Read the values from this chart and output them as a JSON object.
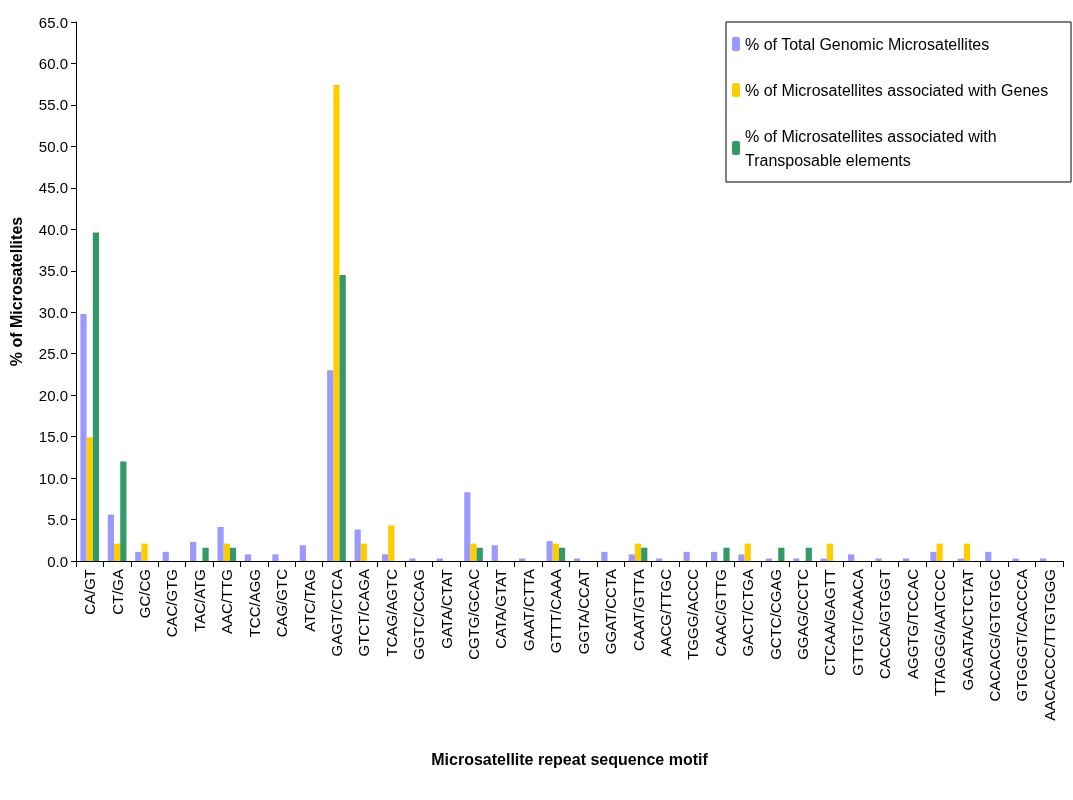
{
  "chart_data": {
    "type": "bar",
    "xlabel": "Microsatellite repeat sequence motif",
    "ylabel": "% of Microsatellites",
    "categories": [
      "CA/GT",
      "CT/GA",
      "GC/CG",
      "CAC/GTG",
      "TAC/ATG",
      "AAC/TTG",
      "TCC/AGG",
      "CAG/GTC",
      "ATC/TAG",
      "GAGT/CTCA",
      "GTCT/CAGA",
      "TCAG/AGTC",
      "GGTC/CCAG",
      "GATA/CTAT",
      "CGTG/GCAC",
      "CATA/GTAT",
      "GAAT/CTTA",
      "GTTT/CAAA",
      "GGTA/CCAT",
      "GGAT/CCTA",
      "CAAT/GTTA",
      "AACG/TTGC",
      "TGGG/ACCC",
      "CAAC/GTTG",
      "GACT/CTGA",
      "GCTC/CGAG",
      "GGAG/CCTC",
      "CTCAA/GAGTT",
      "GTTGT/CAACA",
      "CACCA/GTGGT",
      "AGGTG/TCCAC",
      "TTAGGG/AATCCC",
      "GAGATA/CTCTAT",
      "CACACG/GTGTGC",
      "GTGGGT/CACCCA",
      "AACACCC/TTGTGGG"
    ],
    "series": [
      {
        "name": "% of Total Genomic Microsatellites",
        "color": "#9999ff",
        "values": [
          29.8,
          5.6,
          1.1,
          1.1,
          2.3,
          4.1,
          0.8,
          0.8,
          1.9,
          23.0,
          3.8,
          0.8,
          0.3,
          0.3,
          8.3,
          1.9,
          0.3,
          2.4,
          0.3,
          1.1,
          0.8,
          0.3,
          1.1,
          1.1,
          0.8,
          0.3,
          0.3,
          0.3,
          0.8,
          0.3,
          0.3,
          1.1,
          0.3,
          1.1,
          0.3,
          0.3
        ]
      },
      {
        "name": "% of Microsatellites associated with Genes",
        "color": "#ffcc00",
        "values": [
          14.9,
          2.1,
          2.1,
          null,
          null,
          2.1,
          null,
          null,
          null,
          57.4,
          2.1,
          4.3,
          null,
          null,
          2.1,
          null,
          null,
          2.1,
          null,
          null,
          2.1,
          null,
          null,
          null,
          2.1,
          null,
          null,
          2.1,
          null,
          null,
          null,
          2.1,
          2.1,
          null,
          null,
          null
        ]
      },
      {
        "name": "% of Microsatellites associated with Transposable elements",
        "color": "#339966",
        "values": [
          39.6,
          12.0,
          null,
          null,
          1.6,
          1.6,
          null,
          null,
          null,
          34.5,
          null,
          null,
          null,
          null,
          1.6,
          null,
          null,
          1.6,
          null,
          null,
          1.6,
          null,
          null,
          1.6,
          null,
          1.6,
          1.6,
          null,
          null,
          null,
          null,
          null,
          null,
          null,
          null,
          null
        ]
      }
    ],
    "ylim": [
      0,
      65
    ],
    "yticks": [
      {
        "value": 0,
        "label": "0.0"
      },
      {
        "value": 5,
        "label": "5.0"
      },
      {
        "value": 10,
        "label": "10.0"
      },
      {
        "value": 15,
        "label": "15.0"
      },
      {
        "value": 20,
        "label": "20.0"
      },
      {
        "value": 25,
        "label": "25.0"
      },
      {
        "value": 30,
        "label": "30.0"
      },
      {
        "value": 35,
        "label": "35.0"
      },
      {
        "value": 40,
        "label": "40.0"
      },
      {
        "value": 45,
        "label": "45.0"
      },
      {
        "value": 50,
        "label": "50.0"
      },
      {
        "value": 55,
        "label": "55.0"
      },
      {
        "value": 60,
        "label": "60.0"
      },
      {
        "value": 65,
        "label": "65.0"
      }
    ],
    "grid": false,
    "legend": "top right"
  }
}
